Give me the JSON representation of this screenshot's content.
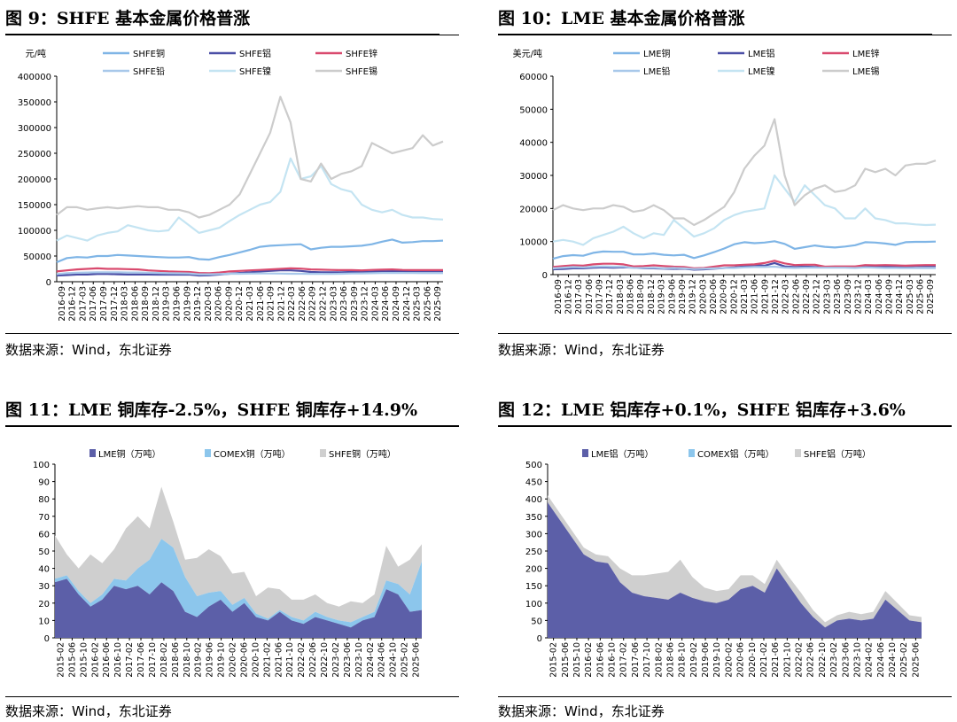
{
  "figures": [
    {
      "title": "图 9：SHFE 基本金属价格普涨",
      "source": "数据来源：Wind，东北证券"
    },
    {
      "title": "图 10：LME 基本金属价格普涨",
      "source": "数据来源：Wind，东北证券"
    },
    {
      "title": "图 11：LME 铜库存-2.5%，SHFE 铜库存+14.9%",
      "source": "数据来源：Wind，东北证券"
    },
    {
      "title": "图 12：LME 铝库存+0.1%，SHFE 铝库存+3.6%",
      "source": "数据来源：Wind，东北证券"
    }
  ],
  "chart_data": [
    {
      "type": "line",
      "title": "图 9：SHFE 基本金属价格普涨",
      "ylabel": "元/吨",
      "ylim": [
        0,
        400000
      ],
      "yticks": [
        0,
        50000,
        100000,
        150000,
        200000,
        250000,
        300000,
        350000,
        400000
      ],
      "xticks": [
        "2016-09",
        "2016-12",
        "2017-03",
        "2017-06",
        "2017-09",
        "2017-12",
        "2018-03",
        "2018-06",
        "2018-09",
        "2018-12",
        "2019-03",
        "2019-06",
        "2019-09",
        "2019-12",
        "2020-03",
        "2020-06",
        "2020-09",
        "2020-12",
        "2021-03",
        "2021-06",
        "2021-09",
        "2021-12",
        "2022-03",
        "2022-06",
        "2022-09",
        "2022-12",
        "2023-03",
        "2023-06",
        "2023-09",
        "2023-12",
        "2024-03",
        "2024-06",
        "2024-09",
        "2024-12",
        "2025-03",
        "2025-06",
        "2025-09"
      ],
      "legend": "top",
      "series": [
        {
          "name": "SHFE铜",
          "color": "#7fb5e6",
          "values": [
            38000,
            46000,
            48000,
            47000,
            50000,
            50000,
            52000,
            51000,
            50000,
            49000,
            48000,
            47000,
            47000,
            48000,
            44000,
            43000,
            48000,
            52000,
            57000,
            62000,
            68000,
            70000,
            71000,
            72000,
            73000,
            63000,
            66000,
            68000,
            68000,
            69000,
            70000,
            73000,
            78000,
            82000,
            76000,
            77000,
            79000,
            79000,
            80000
          ]
        },
        {
          "name": "SHFE铝",
          "color": "#4b4fa6",
          "values": [
            12000,
            13000,
            14000,
            14000,
            15000,
            15000,
            14500,
            14000,
            14000,
            14000,
            13800,
            13800,
            13800,
            14000,
            12000,
            12500,
            14000,
            15500,
            17000,
            18500,
            20000,
            21000,
            22000,
            22000,
            21000,
            19000,
            18500,
            18500,
            18500,
            19000,
            19000,
            19500,
            20000,
            20500,
            20000,
            20500,
            20500,
            20600,
            20500
          ]
        },
        {
          "name": "SHFE锌",
          "color": "#d94a6e",
          "values": [
            20000,
            22000,
            24000,
            25000,
            26000,
            25000,
            25000,
            24500,
            24000,
            22000,
            21000,
            20000,
            19500,
            19000,
            17000,
            16500,
            18000,
            20000,
            21000,
            22000,
            23000,
            24000,
            25000,
            26000,
            25500,
            24000,
            23500,
            23000,
            22500,
            22500,
            22000,
            23000,
            23500,
            24000,
            23000,
            22500,
            22500,
            22500,
            22500
          ]
        },
        {
          "name": "SHFE铅",
          "color": "#a8c8ea",
          "values": [
            15000,
            16500,
            17500,
            18000,
            18500,
            18500,
            18500,
            18000,
            18000,
            17500,
            17000,
            16500,
            16300,
            16000,
            14500,
            14500,
            15000,
            15500,
            15500,
            15800,
            16000,
            16000,
            15800,
            15600,
            15500,
            15300,
            15300,
            15200,
            15500,
            16000,
            16200,
            16500,
            17000,
            17000,
            17000,
            16900,
            16800,
            16800,
            16800
          ]
        },
        {
          "name": "SHFE镍",
          "color": "#c4e4f2",
          "values": [
            80000,
            90000,
            85000,
            80000,
            90000,
            95000,
            98000,
            110000,
            105000,
            100000,
            98000,
            100000,
            125000,
            110000,
            95000,
            100000,
            105000,
            118000,
            130000,
            140000,
            150000,
            155000,
            175000,
            240000,
            200000,
            205000,
            225000,
            190000,
            180000,
            175000,
            150000,
            140000,
            135000,
            140000,
            130000,
            125000,
            125000,
            122000,
            121000
          ]
        },
        {
          "name": "SHFE锡",
          "color": "#cccccc",
          "values": [
            130000,
            145000,
            145000,
            140000,
            143000,
            145000,
            143000,
            145000,
            147000,
            145000,
            145000,
            140000,
            140000,
            135000,
            125000,
            130000,
            140000,
            150000,
            170000,
            210000,
            250000,
            290000,
            360000,
            310000,
            200000,
            195000,
            230000,
            200000,
            210000,
            215000,
            225000,
            270000,
            260000,
            250000,
            255000,
            260000,
            285000,
            265000,
            273000
          ]
        }
      ]
    },
    {
      "type": "line",
      "title": "图 10：LME 基本金属价格普涨",
      "ylabel": "美元/吨",
      "ylim": [
        0,
        60000
      ],
      "yticks": [
        0,
        10000,
        20000,
        30000,
        40000,
        50000,
        60000
      ],
      "xticks": [
        "2016-09",
        "2016-12",
        "2017-03",
        "2017-06",
        "2017-09",
        "2017-12",
        "2018-03",
        "2018-06",
        "2018-09",
        "2018-12",
        "2019-03",
        "2019-06",
        "2019-09",
        "2019-12",
        "2020-03",
        "2020-06",
        "2020-09",
        "2020-12",
        "2021-03",
        "2021-06",
        "2021-09",
        "2021-12",
        "2022-03",
        "2022-06",
        "2022-09",
        "2022-12",
        "2023-03",
        "2023-06",
        "2023-09",
        "2023-12",
        "2024-03",
        "2024-06",
        "2024-09",
        "2024-12",
        "2025-03",
        "2025-06",
        "2025-09"
      ],
      "legend": "top",
      "series": [
        {
          "name": "LME铜",
          "color": "#7fb5e6",
          "values": [
            4800,
            5600,
            5900,
            5700,
            6600,
            7000,
            6900,
            6900,
            6100,
            6100,
            6400,
            6000,
            5800,
            6000,
            5000,
            5800,
            6800,
            7900,
            9200,
            9800,
            9500,
            9700,
            10100,
            9300,
            7800,
            8300,
            8800,
            8400,
            8200,
            8500,
            8900,
            9800,
            9700,
            9400,
            9000,
            9800,
            9900,
            9900,
            10000
          ]
        },
        {
          "name": "LME铝",
          "color": "#4b4fa6",
          "values": [
            1600,
            1700,
            1900,
            1900,
            2100,
            2200,
            2100,
            2200,
            2100,
            1900,
            1900,
            1800,
            1750,
            1800,
            1500,
            1600,
            1800,
            2000,
            2200,
            2500,
            2800,
            2700,
            3500,
            2500,
            2300,
            2400,
            2300,
            2200,
            2200,
            2300,
            2300,
            2500,
            2400,
            2500,
            2600,
            2500,
            2600,
            2600,
            2600
          ]
        },
        {
          "name": "LME锌",
          "color": "#d94a6e",
          "values": [
            2300,
            2600,
            2800,
            2700,
            3100,
            3300,
            3300,
            3100,
            2500,
            2600,
            2800,
            2600,
            2400,
            2300,
            1900,
            2000,
            2400,
            2800,
            2800,
            3000,
            3100,
            3500,
            4200,
            3400,
            2900,
            3000,
            3000,
            2400,
            2500,
            2500,
            2500,
            2900,
            2800,
            2900,
            2800,
            2700,
            2800,
            2900,
            2900
          ]
        },
        {
          "name": "LME铅",
          "color": "#a8c8ea",
          "values": [
            1900,
            2100,
            2300,
            2200,
            2400,
            2500,
            2400,
            2400,
            2000,
            2000,
            2100,
            1900,
            2000,
            1900,
            1700,
            1800,
            1900,
            2000,
            2000,
            2200,
            2300,
            2300,
            2400,
            2100,
            2000,
            2100,
            2100,
            2100,
            2100,
            2100,
            2000,
            2200,
            2100,
            2000,
            2000,
            1950,
            1950,
            1950,
            1950
          ]
        },
        {
          "name": "LME镍",
          "color": "#c4e4f2",
          "values": [
            10000,
            10500,
            10000,
            9000,
            11000,
            12000,
            13000,
            14500,
            12500,
            11000,
            12500,
            12000,
            16500,
            14000,
            11500,
            12500,
            14000,
            16500,
            18000,
            19000,
            19500,
            20000,
            30000,
            26000,
            22000,
            27000,
            24000,
            21000,
            20000,
            17000,
            17000,
            20000,
            17000,
            16500,
            15500,
            15500,
            15200,
            15000,
            15100
          ]
        },
        {
          "name": "LME锡",
          "color": "#cccccc",
          "values": [
            19500,
            21000,
            20000,
            19500,
            20000,
            20000,
            21000,
            20500,
            19000,
            19500,
            21000,
            19500,
            17000,
            17000,
            15000,
            16500,
            18500,
            20500,
            25000,
            32000,
            36000,
            39000,
            47000,
            30000,
            21000,
            24000,
            26000,
            27000,
            25000,
            25500,
            27000,
            32000,
            31000,
            32000,
            30000,
            33000,
            33500,
            33500,
            34500
          ]
        }
      ]
    },
    {
      "type": "area",
      "stacked": true,
      "title": "图 11：LME 铜库存-2.5%，SHFE 铜库存+14.9%",
      "ylim": [
        0,
        100
      ],
      "yticks": [
        0,
        10,
        20,
        30,
        40,
        50,
        60,
        70,
        80,
        90,
        100
      ],
      "xticks": [
        "2015-02",
        "2015-06",
        "2015-10",
        "2016-02",
        "2016-06",
        "2016-10",
        "2017-02",
        "2017-06",
        "2017-10",
        "2018-02",
        "2018-06",
        "2018-10",
        "2019-02",
        "2019-06",
        "2019-10",
        "2020-02",
        "2020-06",
        "2020-10",
        "2021-02",
        "2021-06",
        "2021-10",
        "2022-02",
        "2022-06",
        "2022-10",
        "2023-02",
        "2023-06",
        "2023-10",
        "2024-02",
        "2024-06",
        "2024-10",
        "2025-02",
        "2025-06"
      ],
      "legend": "top",
      "categories_count": 32,
      "series": [
        {
          "name": "LME铜（万吨）",
          "color": "#5c5fa8",
          "values": [
            32,
            34,
            25,
            18,
            22,
            30,
            28,
            30,
            25,
            32,
            27,
            15,
            12,
            18,
            22,
            15,
            20,
            12,
            10,
            15,
            10,
            8,
            12,
            10,
            8,
            6,
            10,
            12,
            28,
            25,
            15,
            16
          ]
        },
        {
          "name": "COMEX铜（万吨）",
          "color": "#8cc6ec",
          "values": [
            2,
            2,
            2,
            2,
            3,
            4,
            5,
            10,
            20,
            25,
            25,
            20,
            12,
            8,
            5,
            4,
            3,
            2,
            1,
            1,
            2,
            2,
            3,
            2,
            2,
            3,
            2,
            3,
            5,
            6,
            10,
            28
          ]
        },
        {
          "name": "SHFE铜（万吨）",
          "color": "#cfcfcf",
          "values": [
            25,
            12,
            13,
            28,
            18,
            17,
            30,
            30,
            18,
            30,
            15,
            10,
            22,
            25,
            20,
            18,
            15,
            10,
            18,
            12,
            10,
            12,
            10,
            8,
            8,
            12,
            8,
            10,
            20,
            10,
            20,
            10
          ]
        }
      ]
    },
    {
      "type": "area",
      "stacked": true,
      "title": "图 12：LME 铝库存+0.1%，SHFE 铝库存+3.6%",
      "ylim": [
        0,
        500
      ],
      "yticks": [
        0,
        50,
        100,
        150,
        200,
        250,
        300,
        350,
        400,
        450,
        500
      ],
      "xticks": [
        "2015-02",
        "2015-06",
        "2015-10",
        "2016-02",
        "2016-06",
        "2016-10",
        "2017-02",
        "2017-06",
        "2017-10",
        "2018-02",
        "2018-06",
        "2018-10",
        "2019-02",
        "2019-06",
        "2019-10",
        "2020-02",
        "2020-06",
        "2020-10",
        "2021-02",
        "2021-06",
        "2021-10",
        "2022-02",
        "2022-06",
        "2022-10",
        "2023-02",
        "2023-06",
        "2023-10",
        "2024-02",
        "2024-06",
        "2024-10",
        "2025-02",
        "2025-06"
      ],
      "legend": "top",
      "categories_count": 32,
      "series": [
        {
          "name": "LME铝（万吨）",
          "color": "#5c5fa8",
          "values": [
            390,
            340,
            290,
            240,
            220,
            215,
            160,
            130,
            120,
            115,
            110,
            130,
            115,
            105,
            100,
            110,
            140,
            150,
            130,
            200,
            150,
            100,
            60,
            30,
            50,
            55,
            50,
            55,
            110,
            80,
            50,
            45
          ]
        },
        {
          "name": "COMEX铝（万吨）",
          "color": "#8cc6ec",
          "values": [
            0,
            0,
            0,
            0,
            0,
            0,
            0,
            0,
            0,
            0,
            0,
            0,
            0,
            0,
            0,
            0,
            0,
            0,
            0,
            0,
            0,
            0,
            0,
            0,
            0,
            0,
            0,
            0,
            0,
            0,
            0,
            0
          ]
        },
        {
          "name": "SHFE铝（万吨）",
          "color": "#cfcfcf",
          "values": [
            20,
            20,
            20,
            20,
            20,
            20,
            40,
            50,
            60,
            70,
            80,
            95,
            60,
            40,
            35,
            30,
            40,
            30,
            25,
            25,
            25,
            30,
            20,
            15,
            15,
            20,
            18,
            20,
            25,
            20,
            15,
            15
          ]
        }
      ]
    }
  ]
}
